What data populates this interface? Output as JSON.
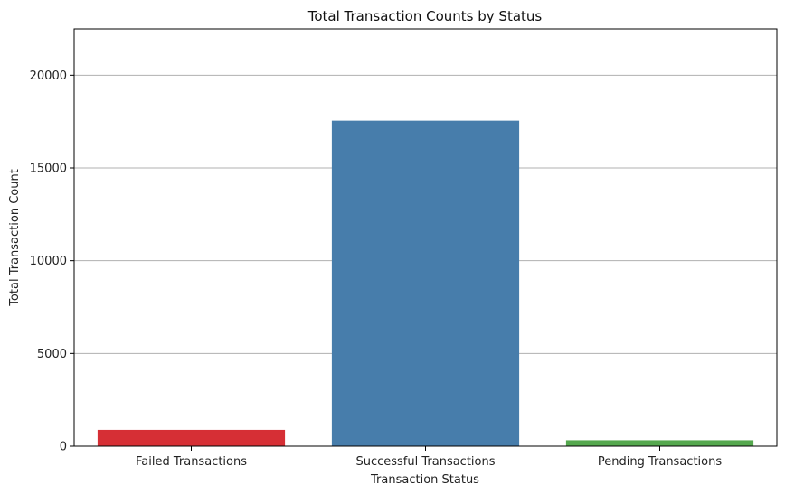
{
  "chart_data": {
    "type": "bar",
    "title": "Total Transaction Counts by Status",
    "xlabel": "Transaction Status",
    "ylabel": "Total Transaction Count",
    "categories": [
      "Failed Transactions",
      "Successful Transactions",
      "Pending Transactions"
    ],
    "values": [
      880,
      17550,
      320
    ],
    "colors": [
      "#d62f35",
      "#477dab",
      "#55a84e"
    ],
    "ylim": [
      0,
      22500
    ],
    "yticks": [
      0,
      5000,
      10000,
      15000,
      20000
    ],
    "ytick_labels": [
      "0",
      "5000",
      "10000",
      "15000",
      "20000"
    ],
    "grid": "y",
    "legend": "none"
  }
}
